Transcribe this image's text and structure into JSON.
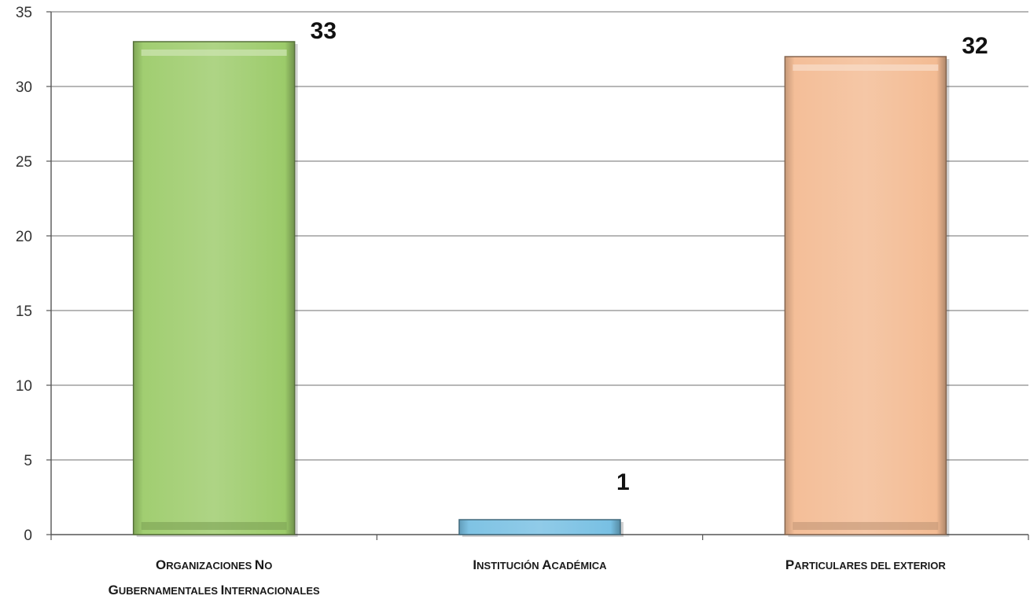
{
  "chart_data": {
    "type": "bar",
    "categories": [
      "Organizaciones No Gubernamentales Internacionales",
      "Institución Académica",
      "Particulares del exterior"
    ],
    "category_label_lines": [
      [
        [
          {
            "t": "O",
            "sc": false
          },
          {
            "t": "RGANIZACIONES ",
            "sc": true
          },
          {
            "t": "N",
            "sc": false
          },
          {
            "t": "O",
            "sc": true
          }
        ],
        [
          {
            "t": "G",
            "sc": false
          },
          {
            "t": "UBERNAMENTALES ",
            "sc": true
          },
          {
            "t": "I",
            "sc": false
          },
          {
            "t": "NTERNACIONALES",
            "sc": true
          }
        ]
      ],
      [
        [
          {
            "t": "I",
            "sc": false
          },
          {
            "t": "NSTITUCIÓN ",
            "sc": true
          },
          {
            "t": "A",
            "sc": false
          },
          {
            "t": "CADÉMICA",
            "sc": true
          }
        ]
      ],
      [
        [
          {
            "t": "P",
            "sc": false
          },
          {
            "t": "ARTICULARES DEL EXTERIOR",
            "sc": true
          }
        ]
      ]
    ],
    "values": [
      33,
      1,
      32
    ],
    "data_labels": [
      "33",
      "1",
      "32"
    ],
    "colors": [
      "#9ccb6a",
      "#78c0e3",
      "#f3bb93"
    ],
    "ylim": [
      0,
      35
    ],
    "yticks": [
      0,
      5,
      10,
      15,
      20,
      25,
      30,
      35
    ],
    "grid": true,
    "title": "",
    "xlabel": "",
    "ylabel": ""
  }
}
